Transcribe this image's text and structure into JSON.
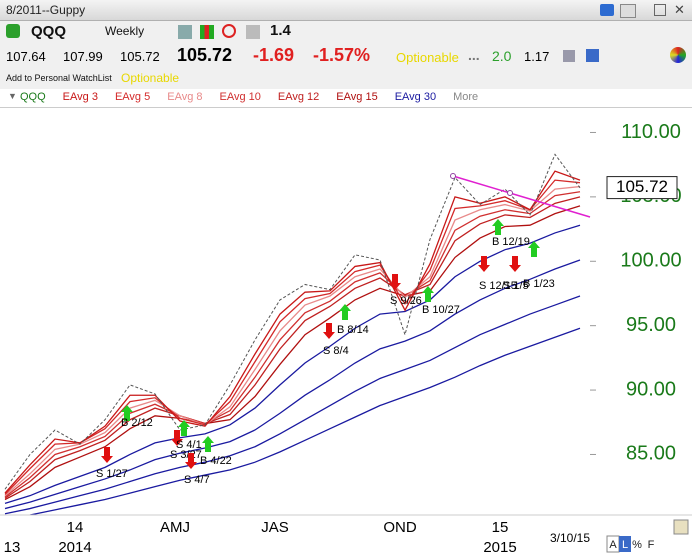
{
  "window": {
    "title": "8/2011--Guppy"
  },
  "toolbar": {
    "symbol": "QQQ",
    "timeframe": "Weekly",
    "zoom": "1.4"
  },
  "quote": {
    "open": "107.64",
    "high": "107.99",
    "low": "105.72",
    "last": "105.72",
    "change": "-1.69",
    "change_pct": "-1.57%",
    "optionable": "Optionable",
    "dots": "...",
    "value1": "2.0",
    "value2": "1.17"
  },
  "watchlist": {
    "add": "Add to Personal WatchList",
    "optionable": "Optionable"
  },
  "legend_more": "More",
  "chart_data": {
    "type": "line",
    "categories": [
      null,
      null,
      null,
      "14",
      null,
      null,
      null,
      "AMJ",
      null,
      null,
      null,
      "JAS",
      null,
      null,
      null,
      null,
      "OND",
      null,
      null,
      null,
      "15",
      null,
      null,
      null
    ],
    "year_categories": [
      "13",
      null,
      null,
      "2014",
      null,
      null,
      null,
      null,
      null,
      null,
      null,
      null,
      null,
      null,
      null,
      null,
      null,
      null,
      null,
      null,
      "2015",
      null,
      null,
      null
    ],
    "date_label": "3/10/15",
    "ylim": [
      80.3,
      111.9
    ],
    "yticks": [
      {
        "value": 85,
        "label": "85.00"
      },
      {
        "value": 90,
        "label": "90.00"
      },
      {
        "value": 95,
        "label": "95.00"
      },
      {
        "value": 100,
        "label": "100.00"
      },
      {
        "value": 105,
        "label": "105.00"
      },
      {
        "value": 110,
        "label": "110.00"
      }
    ],
    "last_price": 105.72,
    "series": [
      {
        "name": "QQQ",
        "color": "#555555",
        "dashed": true,
        "values": [
          82.3,
          85.0,
          86.9,
          85.8,
          87.7,
          90.4,
          89.7,
          86.9,
          87.3,
          90.4,
          93.9,
          97.0,
          98.2,
          97.8,
          100.5,
          100.1,
          94.3,
          101.7,
          106.5,
          104.4,
          105.6,
          103.6,
          108.3,
          105.7
        ]
      },
      {
        "name": "EAvg 3",
        "color": "#c81818",
        "values": [
          82.0,
          84.2,
          86.2,
          85.9,
          87.2,
          89.6,
          89.6,
          87.6,
          87.2,
          89.5,
          92.8,
          95.9,
          97.6,
          97.7,
          99.6,
          99.9,
          96.2,
          99.8,
          105.0,
          104.5,
          105.0,
          104.0,
          107.0,
          106.3
        ]
      },
      {
        "name": "EAvg 5",
        "color": "#d42a2a",
        "values": [
          81.9,
          83.9,
          85.8,
          85.9,
          87.0,
          89.1,
          89.4,
          87.8,
          87.3,
          89.1,
          92.2,
          95.3,
          97.1,
          97.5,
          99.2,
          99.7,
          96.7,
          99.3,
          104.1,
          104.3,
          104.7,
          104.0,
          106.3,
          106.1
        ]
      },
      {
        "name": "EAvg 8",
        "color": "#e88a8a",
        "values": [
          81.8,
          83.5,
          85.4,
          85.8,
          86.7,
          88.6,
          89.2,
          88.0,
          87.3,
          88.7,
          91.6,
          94.6,
          96.6,
          97.3,
          98.8,
          99.4,
          97.2,
          98.8,
          103.2,
          104.0,
          104.4,
          103.9,
          105.6,
          105.8
        ]
      },
      {
        "name": "EAvg 10",
        "color": "#d03030",
        "values": [
          81.7,
          83.2,
          85.0,
          85.6,
          86.4,
          88.2,
          88.9,
          88.0,
          87.4,
          88.4,
          91.0,
          93.9,
          96.0,
          96.9,
          98.4,
          99.1,
          97.3,
          98.5,
          102.4,
          103.5,
          104.0,
          103.7,
          105.1,
          105.4
        ]
      },
      {
        "name": "EAvg 12",
        "color": "#c02020",
        "values": [
          81.6,
          82.9,
          84.6,
          85.3,
          86.1,
          87.7,
          88.6,
          88.0,
          87.4,
          88.1,
          90.4,
          93.2,
          95.4,
          96.5,
          97.9,
          98.7,
          97.4,
          98.2,
          101.6,
          102.9,
          103.6,
          103.4,
          104.5,
          105.0
        ]
      },
      {
        "name": "EAvg 15",
        "color": "#b01010",
        "values": [
          81.5,
          82.5,
          84.0,
          84.8,
          85.6,
          87.0,
          88.0,
          87.8,
          87.4,
          87.7,
          89.5,
          92.0,
          94.3,
          95.6,
          97.0,
          97.9,
          97.3,
          97.7,
          100.3,
          101.8,
          102.7,
          102.8,
          103.7,
          104.3
        ]
      },
      {
        "name": "EAvg 30",
        "color": "#1a1aa0",
        "values": [
          81.2,
          81.8,
          82.6,
          83.3,
          84.0,
          85.0,
          85.9,
          86.3,
          86.6,
          87.3,
          88.6,
          90.4,
          92.1,
          93.4,
          94.8,
          95.9,
          96.1,
          97.0,
          98.8,
          100.0,
          100.9,
          101.4,
          102.2,
          102.8
        ]
      },
      {
        "color": "#1a1aa0",
        "values": [
          80.8,
          81.3,
          81.9,
          82.5,
          83.1,
          83.8,
          84.6,
          85.1,
          85.5,
          86.0,
          86.9,
          88.2,
          89.6,
          90.8,
          92.1,
          93.2,
          93.8,
          94.6,
          95.9,
          97.0,
          97.9,
          98.6,
          99.4,
          100.1
        ]
      },
      {
        "color": "#1a1aa0",
        "values": [
          80.4,
          80.8,
          81.3,
          81.8,
          82.3,
          82.9,
          83.5,
          84.0,
          84.4,
          84.9,
          85.6,
          86.6,
          87.7,
          88.8,
          89.9,
          90.9,
          91.6,
          92.3,
          93.3,
          94.3,
          95.1,
          95.9,
          96.6,
          97.3
        ]
      },
      {
        "color": "#1a1aa0",
        "values": [
          80.0,
          80.3,
          80.7,
          81.1,
          81.5,
          82.0,
          82.5,
          83.0,
          83.4,
          83.8,
          84.4,
          85.2,
          86.1,
          87.0,
          87.9,
          88.8,
          89.5,
          90.2,
          91.0,
          91.9,
          92.7,
          93.4,
          94.1,
          94.8
        ]
      }
    ],
    "annotations": [
      "S 1/27",
      "B 2/12",
      "S 3/27",
      "S 4/1",
      "S 4/7",
      "B 4/22",
      "S 8/4",
      "B 8/14",
      "S 9/26",
      "B 10/27",
      "B 12/19",
      "S 12/15",
      "S 1/5",
      "B 1/23"
    ],
    "footer": [
      "A",
      "L",
      "%",
      "F"
    ]
  }
}
